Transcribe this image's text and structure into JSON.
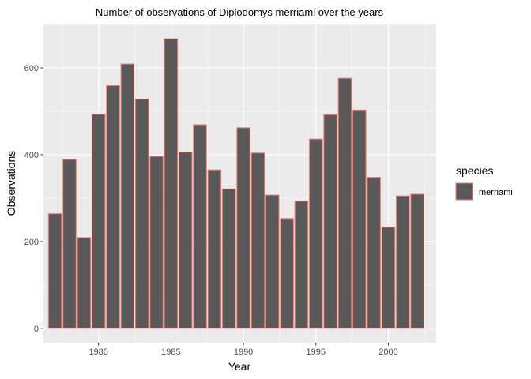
{
  "chart_data": {
    "type": "bar",
    "title": "Number of observations of Diplodomys merriami over the years",
    "xlabel": "Year",
    "ylabel": "Observations",
    "x": [
      1977,
      1978,
      1979,
      1980,
      1981,
      1982,
      1983,
      1984,
      1985,
      1986,
      1987,
      1988,
      1989,
      1990,
      1991,
      1992,
      1993,
      1994,
      1995,
      1996,
      1997,
      1998,
      1999,
      2000,
      2001,
      2002
    ],
    "series": [
      {
        "name": "merriami",
        "values": [
          264,
          389,
          209,
          493,
          559,
          609,
          528,
          396,
          667,
          406,
          469,
          365,
          321,
          462,
          404,
          307,
          253,
          293,
          436,
          492,
          576,
          503,
          348,
          233,
          305,
          309
        ]
      }
    ],
    "xlim": [
      1976.2,
      2003.3
    ],
    "ylim": [
      -33,
      700
    ],
    "xticks": [
      1980,
      1985,
      1990,
      1995,
      2000
    ],
    "yticks": [
      0,
      200,
      400,
      600
    ],
    "grid": true,
    "legend": {
      "title": "species",
      "position": "right"
    },
    "colors": {
      "bar_fill": "#595959",
      "bar_outline": "#f8766d",
      "panel_background": "#ebebeb",
      "grid": "#ffffff"
    }
  }
}
